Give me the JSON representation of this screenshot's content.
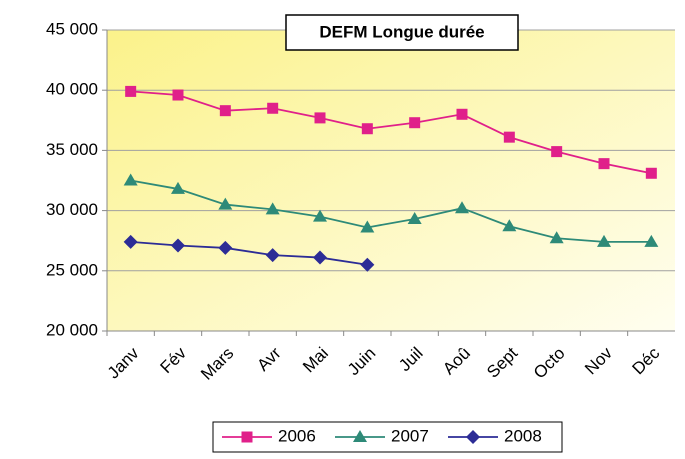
{
  "chart_data": {
    "type": "line",
    "title": "DEFM Longue durée",
    "categories": [
      "Janv",
      "Fév",
      "Mars",
      "Avr",
      "Mai",
      "Juin",
      "Juil",
      "Aoû",
      "Sept",
      "Octo",
      "Nov",
      "Déc"
    ],
    "series": [
      {
        "name": "2006",
        "color": "#e0208a",
        "marker": "square",
        "values": [
          39900,
          39600,
          38300,
          38500,
          37700,
          36800,
          37300,
          38000,
          36100,
          34900,
          33900,
          33100
        ]
      },
      {
        "name": "2007",
        "color": "#2e8a78",
        "marker": "triangle",
        "values": [
          32500,
          31800,
          30500,
          30100,
          29500,
          28600,
          29300,
          30200,
          28700,
          27700,
          27400,
          27400
        ]
      },
      {
        "name": "2008",
        "color": "#2c2c96",
        "marker": "diamond",
        "values": [
          27400,
          27100,
          26900,
          26300,
          26100,
          25500,
          null,
          null,
          null,
          null,
          null,
          null
        ]
      }
    ],
    "ylim": [
      20000,
      45000
    ],
    "yticks": [
      {
        "value": 20000,
        "label": "20 000"
      },
      {
        "value": 25000,
        "label": "25 000"
      },
      {
        "value": 30000,
        "label": "30 000"
      },
      {
        "value": 35000,
        "label": "35 000"
      },
      {
        "value": 40000,
        "label": "40 000"
      },
      {
        "value": 45000,
        "label": "45 000"
      }
    ],
    "grid": true,
    "legend": "bottom"
  }
}
